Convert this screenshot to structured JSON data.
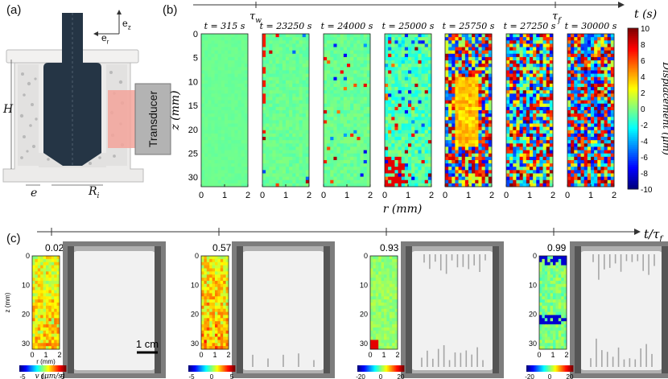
{
  "panel_a": {
    "label": "(a)",
    "axis_labels": {
      "er": "e",
      "er_sub": "r",
      "ez": "e",
      "ez_sub": "z"
    },
    "dim_labels": {
      "H": "H",
      "e": "e",
      "Ri": "R",
      "Ri_sub": "i"
    },
    "transducer": "Transducer"
  },
  "panel_b": {
    "label": "(b)",
    "timeline": {
      "tau_w": "τ",
      "tau_w_sub": "w",
      "tau_f": "τ",
      "tau_f_sub": "f",
      "axis_label": "t (s)"
    },
    "times": [
      "t = 315 s",
      "t = 23250 s",
      "t = 24000 s",
      "t = 25000 s",
      "t = 25750 s",
      "t = 27250 s",
      "t = 30000 s"
    ],
    "z_ticks": [
      "0",
      "5",
      "10",
      "15",
      "20",
      "25",
      "30"
    ],
    "r_ticks": [
      "0",
      "1",
      "2"
    ],
    "ylabel": "z (mm)",
    "xlabel": "r (mm)",
    "colorbar": {
      "label": "Displacement (μm)",
      "ticks": [
        "10",
        "8",
        "6",
        "4",
        "2",
        "0",
        "-2",
        "-4",
        "-6",
        "-8",
        "-10"
      ]
    }
  },
  "panel_c": {
    "label": "(c)",
    "axis_label": "t/τ",
    "axis_label_sub": "f",
    "snapshots": [
      {
        "frac": "0.02",
        "cb_ticks": [
          "-5",
          "0",
          "5"
        ]
      },
      {
        "frac": "0.57",
        "cb_ticks": [
          "-5",
          "0",
          "5"
        ]
      },
      {
        "frac": "0.93",
        "cb_ticks": [
          "-20",
          "0",
          "20"
        ]
      },
      {
        "frac": "0.99",
        "cb_ticks": [
          "-20",
          "0",
          "20"
        ]
      }
    ],
    "z_ticks": [
      "0",
      "10",
      "20",
      "30"
    ],
    "r_ticks": [
      "0",
      "1",
      "2"
    ],
    "ylabel": "z (mm)",
    "xlabel": "r (mm)",
    "cb_label": "v (μm/s)",
    "scalebar": "1 cm"
  }
}
